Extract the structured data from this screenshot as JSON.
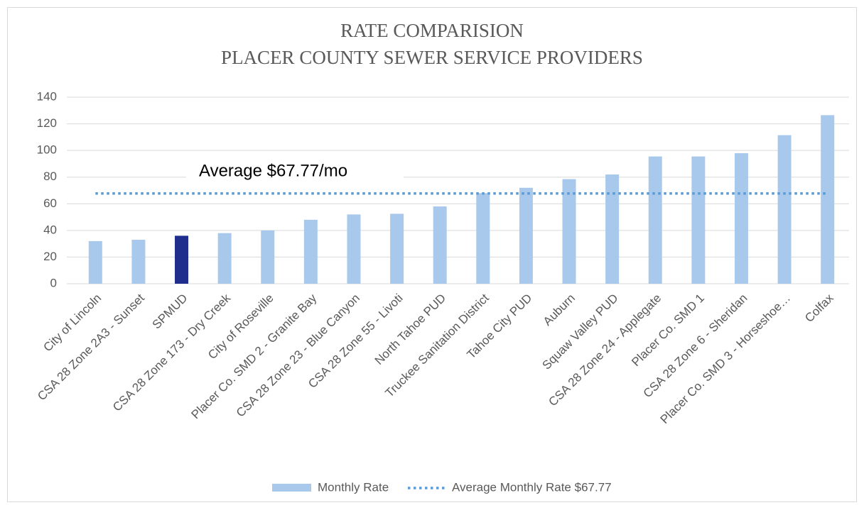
{
  "chart_data": {
    "type": "bar",
    "title": [
      "RATE COMPARISION",
      "PLACER COUNTY SEWER SERVICE PROVIDERS"
    ],
    "annotation": "Average $67.77/mo",
    "categories": [
      "City of Lincoln",
      "CSA 28 Zone 2A3 - Sunset",
      "SPMUD",
      "CSA 28 Zone 173 - Dry Creek",
      "City of Roseville",
      "Placer Co. SMD 2 - Granite Bay",
      "CSA 28 Zone 23 - Blue Canyon",
      "CSA 28 Zone 55 - Livoti",
      "North Tahoe PUD",
      "Truckee Sanitation District",
      "Tahoe City PUD",
      "Auburn",
      "Squaw Valley PUD",
      "CSA 28 Zone 24 - Applegate",
      "Placer Co. SMD 1",
      "CSA 28 Zone 6 - Sheridan",
      "Placer Co. SMD 3 - Horseshoe…",
      "Colfax"
    ],
    "series": [
      {
        "name": "Monthly Rate",
        "type": "bar",
        "color": "#a9c9ec",
        "colors": [
          "#a9c9ec",
          "#a9c9ec",
          "#1f2e8c",
          "#a9c9ec",
          "#a9c9ec",
          "#a9c9ec",
          "#a9c9ec",
          "#a9c9ec",
          "#a9c9ec",
          "#a9c9ec",
          "#a9c9ec",
          "#a9c9ec",
          "#a9c9ec",
          "#a9c9ec",
          "#a9c9ec",
          "#a9c9ec",
          "#a9c9ec",
          "#a9c9ec"
        ],
        "values": [
          32,
          33,
          36,
          38,
          40,
          48,
          52,
          52.5,
          58,
          68,
          72,
          78.5,
          82,
          95.5,
          95.5,
          98,
          111.5,
          126.5
        ]
      },
      {
        "name": "Average Monthly Rate $67.77",
        "type": "line",
        "color": "#5b9bd5",
        "values": [
          67.77,
          67.77,
          67.77,
          67.77,
          67.77,
          67.77,
          67.77,
          67.77,
          67.77,
          67.77,
          67.77,
          67.77,
          67.77,
          67.77,
          67.77,
          67.77,
          67.77,
          67.77
        ]
      }
    ],
    "ylim": [
      0,
      140
    ],
    "yticks": [
      0,
      20,
      40,
      60,
      80,
      100,
      120,
      140
    ],
    "grid": true,
    "legend": "bottom"
  }
}
